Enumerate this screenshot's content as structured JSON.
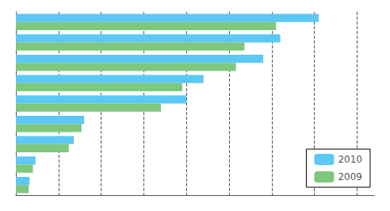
{
  "chart_data": {
    "type": "bar",
    "orientation": "horizontal",
    "categories": [
      null,
      null,
      null,
      null,
      null,
      null,
      null,
      null,
      null
    ],
    "series": [
      {
        "name": "2010",
        "color": "#5BC8F5",
        "values": [
          355,
          310,
          290,
          220,
          200,
          80,
          68,
          23,
          16
        ]
      },
      {
        "name": "2009",
        "color": "#7DC87D",
        "values": [
          305,
          268,
          258,
          195,
          170,
          77,
          62,
          20,
          15
        ]
      }
    ],
    "xlim": [
      0,
      420
    ],
    "xticks": [
      50,
      100,
      150,
      200,
      250,
      300,
      350,
      400
    ],
    "grid": true,
    "legend": "lower right",
    "tick_labels": false
  }
}
